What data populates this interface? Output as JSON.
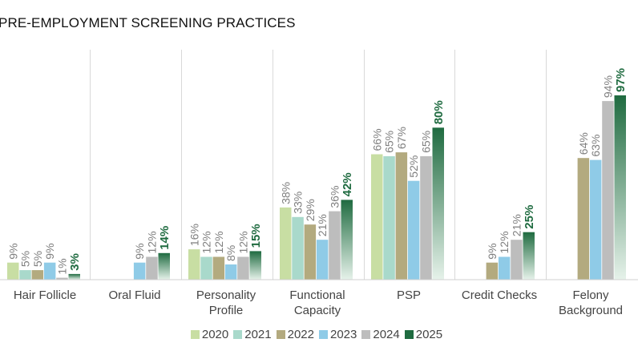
{
  "title": "PRE-EMPLOYMENT SCREENING PRACTICES",
  "chart_data": {
    "type": "bar",
    "categories": [
      [
        "Hair Follicle"
      ],
      [
        "Oral Fluid"
      ],
      [
        "Personality",
        "Profile"
      ],
      [
        "Functional",
        "Capacity"
      ],
      [
        "PSP"
      ],
      [
        "Credit Checks"
      ],
      [
        "Felony",
        "Background"
      ]
    ],
    "series": [
      {
        "name": "2020",
        "color": "#c8dea3",
        "values": [
          9,
          null,
          16,
          38,
          66,
          null,
          null
        ]
      },
      {
        "name": "2021",
        "color": "#a9d9cb",
        "values": [
          5,
          null,
          12,
          33,
          65,
          null,
          null
        ]
      },
      {
        "name": "2022",
        "color": "#b3aa7f",
        "values": [
          5,
          null,
          12,
          29,
          67,
          9,
          64
        ]
      },
      {
        "name": "2023",
        "color": "#8fcbe7",
        "values": [
          9,
          9,
          8,
          21,
          52,
          12,
          63
        ]
      },
      {
        "name": "2024",
        "color": "#bdbdbd",
        "values": [
          1,
          12,
          12,
          36,
          65,
          21,
          94
        ]
      },
      {
        "name": "2025",
        "color": "#1f6b40",
        "values": [
          3,
          14,
          15,
          42,
          80,
          25,
          97
        ],
        "gradient_to": "#e6f2ea",
        "label_color": "#1f6b40",
        "label_bold": true
      }
    ],
    "value_suffix": "%",
    "ylim": [
      0,
      100
    ],
    "label_color": "#7f7f7f",
    "legend_position": "bottom"
  }
}
